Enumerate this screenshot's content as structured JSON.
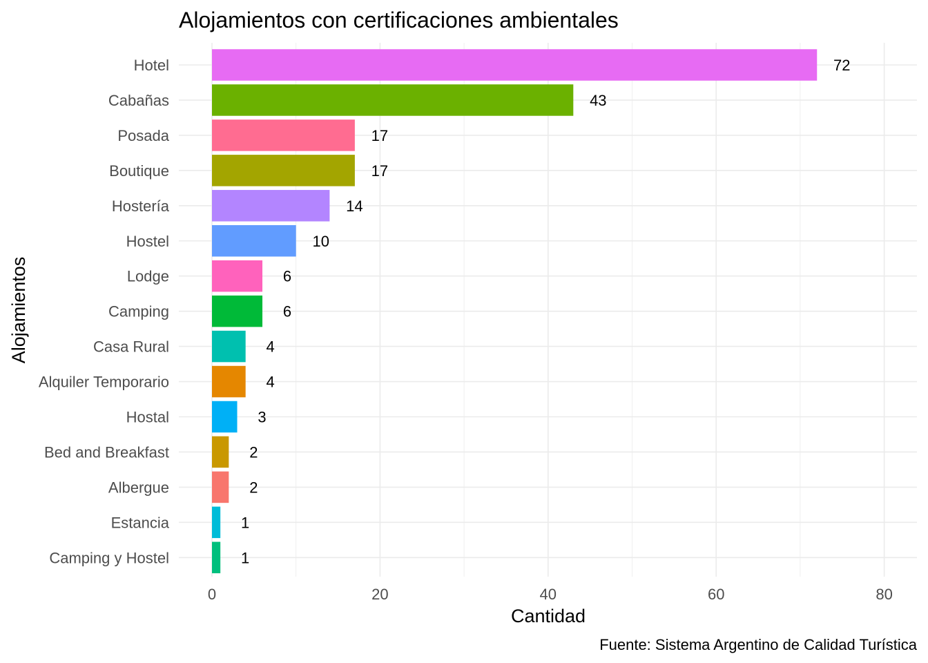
{
  "chart_data": {
    "type": "bar",
    "orientation": "horizontal",
    "title": "Alojamientos con certificaciones ambientales",
    "xlabel": "Cantidad",
    "ylabel": "Alojamientos",
    "caption": "Fuente: Sistema Argentino de Calidad Turística",
    "xlim": [
      0,
      84
    ],
    "xticks": [
      0,
      20,
      40,
      60,
      80
    ],
    "grid": true,
    "legend": "none",
    "categories": [
      "Hotel",
      "Cabañas",
      "Posada",
      "Boutique",
      "Hostería",
      "Hostel",
      "Lodge",
      "Camping",
      "Casa Rural",
      "Alquiler Temporario",
      "Hostal",
      "Bed and Breakfast",
      "Albergue",
      "Estancia",
      "Camping y Hostel"
    ],
    "values": [
      72,
      43,
      17,
      17,
      14,
      10,
      6,
      6,
      4,
      4,
      3,
      2,
      2,
      1,
      1
    ],
    "colors": [
      "#E76BF3",
      "#6BB100",
      "#FF6C91",
      "#A3A500",
      "#B385FF",
      "#619CFF",
      "#FF62BC",
      "#00BA38",
      "#00C0AF",
      "#E58700",
      "#00B0F6",
      "#C99800",
      "#F8766D",
      "#00BCD8",
      "#00BF7D"
    ]
  }
}
